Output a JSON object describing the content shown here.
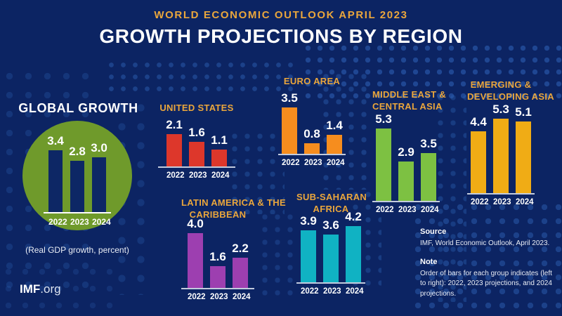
{
  "header": {
    "kicker": "WORLD ECONOMIC OUTLOOK APRIL 2023",
    "title": "GROWTH PROJECTIONS BY REGION"
  },
  "global": {
    "title": "GLOBAL GROWTH",
    "subtitle": "(Real GDP growth, percent)"
  },
  "chart_data": [
    {
      "id": "global",
      "type": "bar",
      "title": "GLOBAL GROWTH",
      "categories": [
        "2022",
        "2023",
        "2024"
      ],
      "values": [
        3.4,
        2.8,
        3.0
      ],
      "bar_color": "#0D2765",
      "ylabel": "Real GDP growth, percent",
      "legend": "none",
      "grid": false
    },
    {
      "id": "us",
      "type": "bar",
      "title": "UNITED STATES",
      "title_lines": [
        "UNITED STATES"
      ],
      "categories": [
        "2022",
        "2023",
        "2024"
      ],
      "values": [
        2.1,
        1.6,
        1.1
      ],
      "bar_color": "#DD372B",
      "grid": false
    },
    {
      "id": "euro",
      "type": "bar",
      "title": "EURO AREA",
      "title_lines": [
        "EURO AREA"
      ],
      "categories": [
        "2022",
        "2023",
        "2024"
      ],
      "values": [
        3.5,
        0.8,
        1.4
      ],
      "bar_color": "#F68D1E",
      "grid": false
    },
    {
      "id": "meca",
      "type": "bar",
      "title": "MIDDLE EAST & CENTRAL ASIA",
      "title_lines": [
        "MIDDLE EAST &",
        "CENTRAL ASIA"
      ],
      "categories": [
        "2022",
        "2023",
        "2024"
      ],
      "values": [
        5.3,
        2.9,
        3.5
      ],
      "bar_color": "#7DC142",
      "grid": false
    },
    {
      "id": "eda",
      "type": "bar",
      "title": "EMERGING & DEVELOPING ASIA",
      "title_lines": [
        "EMERGING &",
        "DEVELOPING ASIA"
      ],
      "categories": [
        "2022",
        "2023",
        "2024"
      ],
      "values": [
        4.4,
        5.3,
        5.1
      ],
      "bar_color": "#F0AC15",
      "grid": false
    },
    {
      "id": "lac",
      "type": "bar",
      "title": "LATIN AMERICA & THE CARIBBEAN",
      "title_lines": [
        "LATIN AMERICA & THE",
        "CARIBBEAN"
      ],
      "categories": [
        "2022",
        "2023",
        "2024"
      ],
      "values": [
        4.0,
        1.6,
        2.2
      ],
      "bar_color": "#9D3FB0",
      "grid": false
    },
    {
      "id": "ssa",
      "type": "bar",
      "title": "SUB-SAHARAN AFRICA",
      "title_lines": [
        "SUB-SAHARAN",
        "AFRICA"
      ],
      "categories": [
        "2022",
        "2023",
        "2024"
      ],
      "values": [
        3.9,
        3.6,
        4.2
      ],
      "bar_color": "#10B2C3",
      "grid": false
    }
  ],
  "footnotes": {
    "source_label": "Source",
    "source_text": "IMF, World Economic Outlook, April 2023.",
    "note_label": "Note",
    "note_text": "Order of bars for each group indicates (left to right): 2022, 2023 projections, and 2024 projections."
  },
  "brand": {
    "name": "IMF",
    "suffix": ".org"
  },
  "colors": {
    "background": "#0C2463",
    "accent_gold": "#EAA63C",
    "global_circle_green": "#6F9A2B",
    "map_dot_blue": "#2B5EB0",
    "axis_line": "#C2CBDD"
  }
}
